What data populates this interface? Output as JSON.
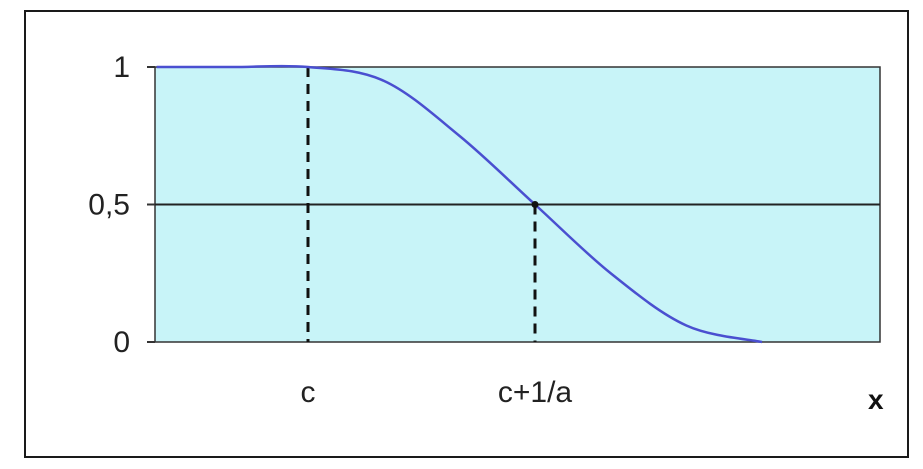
{
  "chart_data": {
    "type": "line",
    "title": "",
    "xlabel": "x",
    "ylabel": "",
    "ylim": [
      0,
      1
    ],
    "y_ticks": [
      "1",
      "0,5",
      "0"
    ],
    "y_tick_values": [
      1,
      0.5,
      0
    ],
    "x_ticks": [
      "c",
      "c+1/a"
    ],
    "x_tick_positions": [
      1.0,
      2.5
    ],
    "xlim": [
      0,
      5
    ],
    "plot_background": "#c8f4f8",
    "line_color": "#4a4fd0",
    "grid": false,
    "series": [
      {
        "x": [
          0,
          0.5,
          1.0,
          1.5,
          2.0,
          2.5,
          3.0,
          3.5,
          4.0
        ],
        "values": [
          1,
          1,
          1,
          0.95,
          0.75,
          0.5,
          0.25,
          0.06,
          0
        ]
      }
    ],
    "guides": [
      {
        "x": 1.0,
        "y_from": 0,
        "y_to": 1,
        "style": "dashed"
      },
      {
        "x": 2.5,
        "y_from": 0,
        "y_to": 0.5,
        "style": "dashed"
      }
    ],
    "reference_lines": [
      {
        "y": 0.5
      }
    ]
  }
}
